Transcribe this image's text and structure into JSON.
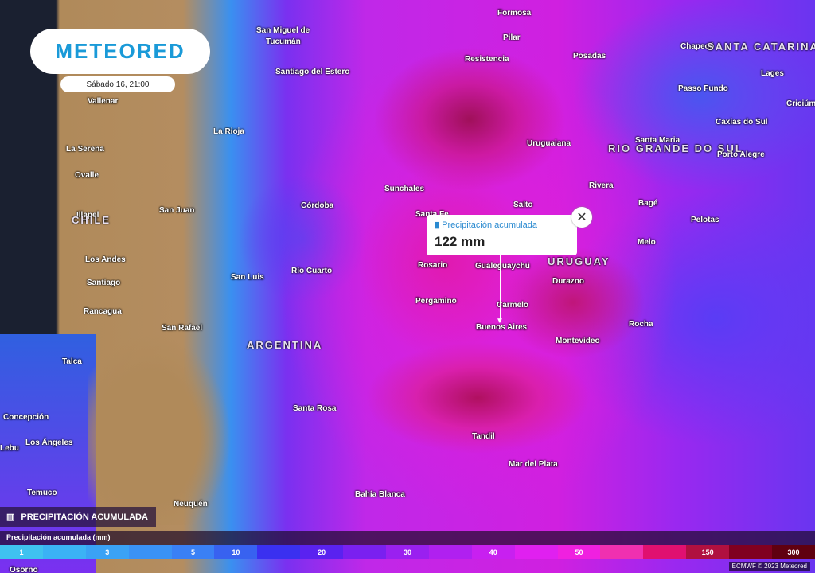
{
  "brand": {
    "logo": "METEORED",
    "date": "Sábado 16, 21:00"
  },
  "popup": {
    "title": "Precipitación acumulada",
    "value": "122 mm",
    "close": "✕"
  },
  "layer": {
    "icon": "rain-gauge-icon",
    "label": "PRECIPITACIÓN ACUMULADA"
  },
  "legend": {
    "title": "Precipitación acumulada (mm)",
    "segments": [
      {
        "label": "1",
        "color": "#3fc2f0"
      },
      {
        "label": "",
        "color": "#3bb2f5"
      },
      {
        "label": "3",
        "color": "#3aa2f5"
      },
      {
        "label": "",
        "color": "#3a92f5"
      },
      {
        "label": "5",
        "color": "#3a80f5"
      },
      {
        "label": "10",
        "color": "#3862f0"
      },
      {
        "label": "",
        "color": "#3a30f0"
      },
      {
        "label": "20",
        "color": "#5a22f0"
      },
      {
        "label": "",
        "color": "#7a20f0"
      },
      {
        "label": "30",
        "color": "#9a20f0"
      },
      {
        "label": "",
        "color": "#b020f0"
      },
      {
        "label": "40",
        "color": "#c820f0"
      },
      {
        "label": "",
        "color": "#e020f0"
      },
      {
        "label": "50",
        "color": "#f020e0"
      },
      {
        "label": "",
        "color": "#f030b0"
      },
      {
        "label": "",
        "color": "#e01070"
      },
      {
        "label": "150",
        "color": "#b01040"
      },
      {
        "label": "",
        "color": "#800020"
      },
      {
        "label": "300",
        "color": "#600010"
      }
    ]
  },
  "credit": "ECMWF © 2023 Meteored",
  "places": [
    "Formosa",
    "Pilar",
    "Resistencia",
    "Posadas",
    "Chapecó",
    "SANTA CATARINA",
    "Lages",
    "Criciúm",
    "San Miguel de",
    "Tucumán",
    "Santiago del Estero",
    "Vallenar",
    "La Rioja",
    "La Serena",
    "Ovalle",
    "Illapel",
    "CHILE",
    "San Juan",
    "Los Andes",
    "Santiago",
    "Rancagua",
    "San Rafael",
    "Talca",
    "Concepción",
    "Los Ángeles",
    "Lebu",
    "Temuco",
    "Osorno",
    "Neuquén",
    "Córdoba",
    "Río Cuarto",
    "San Luis",
    "ARGENTINA",
    "Santa Rosa",
    "Bahía Blanca",
    "Tandil",
    "Mar del Plata",
    "Buenos Aires",
    "Carmelo",
    "Pergamino",
    "Rosario",
    "Gualeguaychú",
    "Santa Fe",
    "Sunchales",
    "Salto",
    "Uruguaiana",
    "Rivera",
    "Bagé",
    "Santa Maria",
    "RIO GRANDE DO SUL",
    "Passo Fundo",
    "Caxias do Sul",
    "Porto Alegre",
    "Pelotas",
    "Melo",
    "URUGUAY",
    "Durazno",
    "Montevideo",
    "Rocha"
  ]
}
